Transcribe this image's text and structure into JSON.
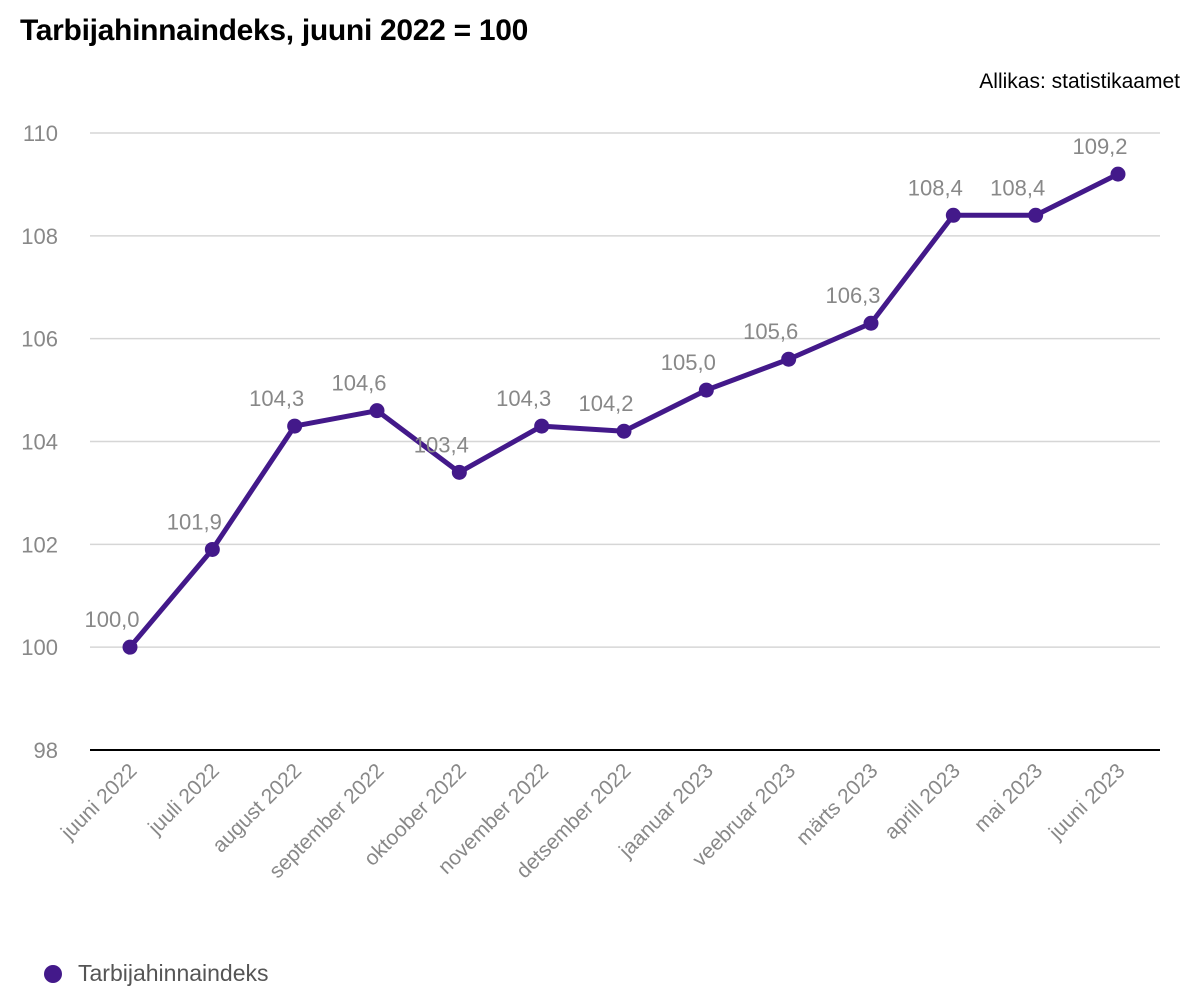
{
  "chart_data": {
    "type": "line",
    "title": "Tarbijahinnaindeks, juuni 2022 = 100",
    "source": "Allikas: statistikaamet",
    "categories": [
      "juuni 2022",
      "juuli 2022",
      "august 2022",
      "september 2022",
      "oktoober 2022",
      "november 2022",
      "detsember 2022",
      "jaanuar 2023",
      "veebruar 2023",
      "märts 2023",
      "aprill 2023",
      "mai 2023",
      "juuni 2023"
    ],
    "series": [
      {
        "name": "Tarbijahinnaindeks",
        "values": [
          100.0,
          101.9,
          104.3,
          104.6,
          103.4,
          104.3,
          104.2,
          105.0,
          105.6,
          106.3,
          108.4,
          108.4,
          109.2
        ],
        "labels": [
          "100,0",
          "101,9",
          "104,3",
          "104,6",
          "103,4",
          "104,3",
          "104,2",
          "105,0",
          "105,6",
          "106,3",
          "108,4",
          "108,4",
          "109,2"
        ],
        "color": "#43198a"
      }
    ],
    "ylim": [
      98,
      110
    ],
    "yticks": [
      98,
      100,
      102,
      104,
      106,
      108,
      110
    ],
    "xlabel": "",
    "ylabel": "",
    "grid": true,
    "legend_position": "bottom-left"
  }
}
